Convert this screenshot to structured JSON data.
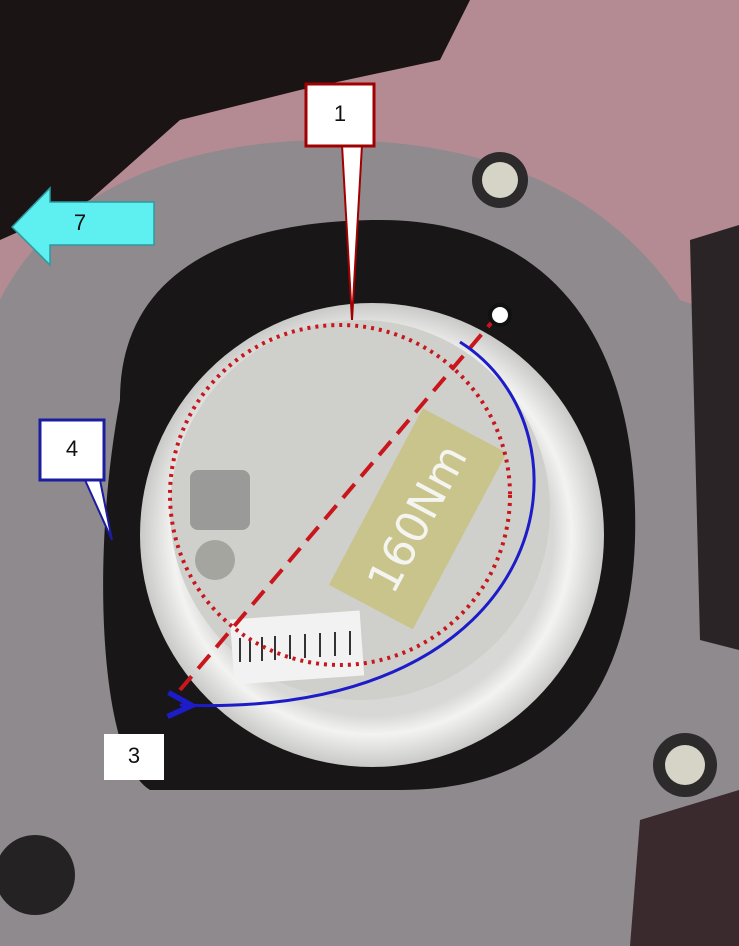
{
  "callouts": [
    {
      "label": "1"
    },
    {
      "label": "3"
    },
    {
      "label": "4"
    },
    {
      "label": "7"
    }
  ],
  "sticker_text": "160Nm"
}
